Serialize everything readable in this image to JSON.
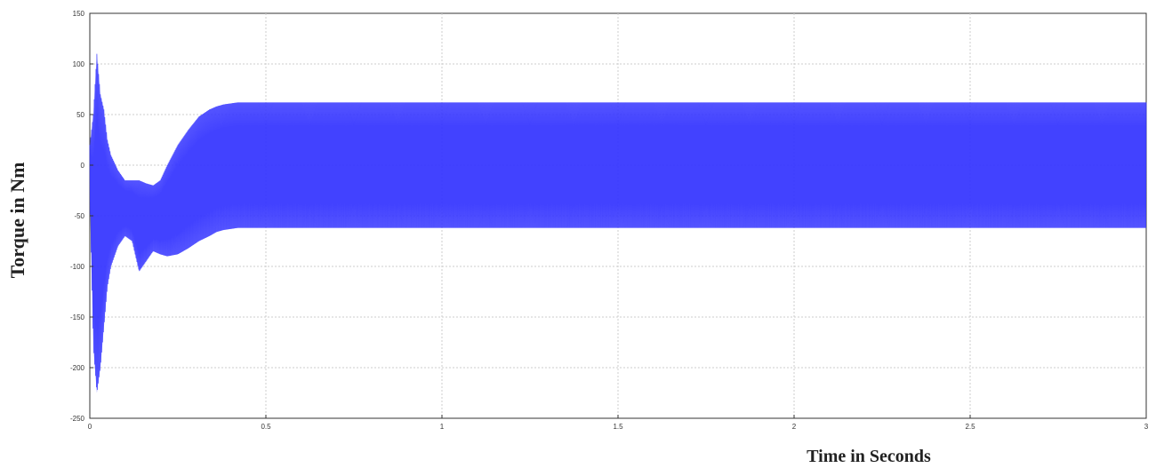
{
  "chart_data": {
    "type": "line",
    "title": "",
    "xlabel": "Time in Seconds",
    "ylabel": "Torque in Nm",
    "xlim": [
      0,
      3
    ],
    "ylim": [
      -250,
      150
    ],
    "xticks": [
      0,
      0.5,
      1,
      1.5,
      2,
      2.5,
      3
    ],
    "xtick_labels": [
      "0",
      "0.5",
      "1",
      "1.5",
      "2",
      "2.5",
      "3"
    ],
    "yticks": [
      150,
      100,
      50,
      0,
      -50,
      -100,
      -150,
      -200,
      -250
    ],
    "ytick_labels": [
      "150",
      "100",
      "50",
      "0",
      "-50",
      "-100",
      "-150",
      "-200",
      "-250"
    ],
    "grid": true,
    "line_color": "#3333ff",
    "fill_color": "#4d4dff",
    "series": [
      {
        "upper_envelope": {
          "x": [
            0.0,
            0.01,
            0.02,
            0.03,
            0.04,
            0.05,
            0.06,
            0.08,
            0.1,
            0.12,
            0.14,
            0.16,
            0.18,
            0.2,
            0.22,
            0.25,
            0.28,
            0.31,
            0.34,
            0.36,
            0.38,
            0.4,
            0.42,
            0.45,
            0.5,
            0.6,
            0.8,
            1.0,
            1.2,
            1.4,
            1.6,
            1.8,
            2.0,
            2.2,
            2.4,
            2.6,
            2.8,
            3.0
          ],
          "y": [
            20,
            50,
            110,
            70,
            55,
            25,
            10,
            -5,
            -15,
            -15,
            -15,
            -18,
            -20,
            -15,
            0,
            20,
            35,
            48,
            55,
            58,
            60,
            61,
            62,
            62,
            62,
            62,
            62,
            62,
            62,
            62,
            62,
            62,
            62,
            62,
            62,
            62,
            62,
            62
          ]
        },
        "lower_envelope": {
          "x": [
            0.0,
            0.01,
            0.02,
            0.03,
            0.04,
            0.05,
            0.06,
            0.08,
            0.1,
            0.12,
            0.14,
            0.16,
            0.18,
            0.2,
            0.22,
            0.25,
            0.28,
            0.31,
            0.34,
            0.36,
            0.38,
            0.4,
            0.42,
            0.45,
            0.5,
            0.6,
            0.8,
            1.0,
            1.2,
            1.4,
            1.6,
            1.8,
            2.0,
            2.2,
            2.4,
            2.6,
            2.8,
            3.0
          ],
          "y": [
            -30,
            -180,
            -225,
            -200,
            -160,
            -120,
            -100,
            -80,
            -70,
            -75,
            -105,
            -95,
            -85,
            -88,
            -90,
            -88,
            -82,
            -75,
            -70,
            -66,
            -64,
            -63,
            -62,
            -62,
            -62,
            -62,
            -62,
            -62,
            -62,
            -62,
            -62,
            -62,
            -62,
            -62,
            -62,
            -62,
            -62,
            -62
          ]
        }
      }
    ]
  }
}
